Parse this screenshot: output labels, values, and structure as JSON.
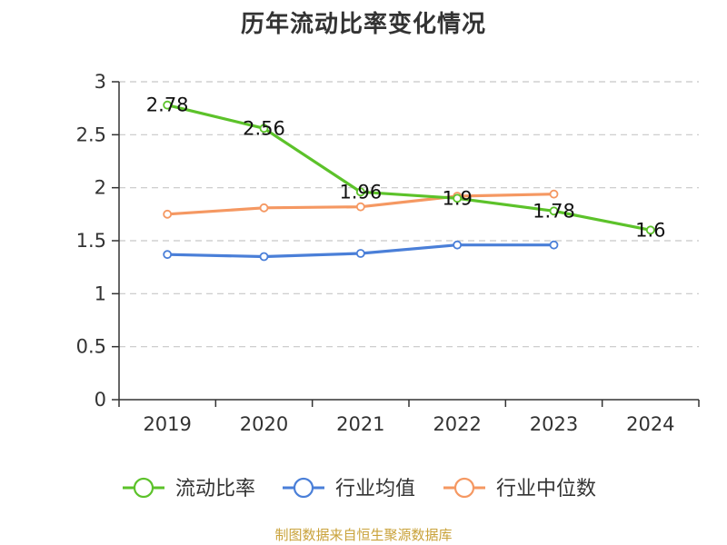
{
  "chart_data": {
    "type": "line",
    "title": "历年流动比率变化情况",
    "xlabel": "",
    "ylabel": "",
    "categories": [
      "2019",
      "2020",
      "2021",
      "2022",
      "2023",
      "2024"
    ],
    "ylim": [
      0,
      3
    ],
    "yticks": [
      0,
      0.5,
      1,
      1.5,
      2,
      2.5,
      3
    ],
    "ytick_labels": [
      "0",
      "0.5",
      "1",
      "1.5",
      "2",
      "2.5",
      "3"
    ],
    "grid": true,
    "legend_position": "bottom",
    "series": [
      {
        "name": "流动比率",
        "color": "#5cc22a",
        "values": [
          2.78,
          2.56,
          1.96,
          1.9,
          1.78,
          1.6
        ],
        "data_labels": [
          "2.78",
          "2.56",
          "1.96",
          "1.9",
          "1.78",
          "1.6"
        ]
      },
      {
        "name": "行业均值",
        "color": "#4a7fd8",
        "values": [
          1.37,
          1.35,
          1.38,
          1.46,
          1.46,
          null
        ]
      },
      {
        "name": "行业中位数",
        "color": "#f59862",
        "values": [
          1.75,
          1.81,
          1.82,
          1.92,
          1.94,
          null
        ]
      }
    ]
  },
  "source": "制图数据来自恒生聚源数据库"
}
